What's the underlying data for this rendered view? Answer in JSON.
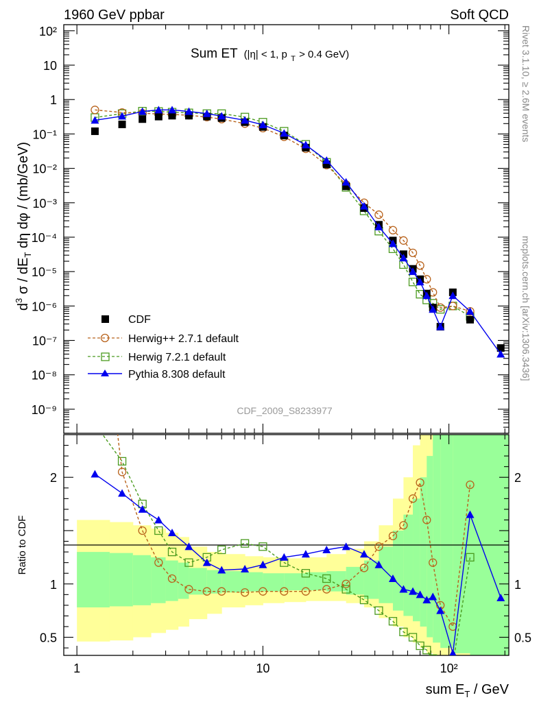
{
  "header": {
    "energy": "1960 GeV ppbar",
    "process": "Soft QCD"
  },
  "side_labels": {
    "rivet": "Rivet 3.1.10, ≥ 2.6M events",
    "source": "mcplots.cern.ch [arXiv:1306.3436]"
  },
  "main_plot": {
    "title": "Sum ET",
    "title_sub": "(|η| < 1, p",
    "title_sub_T": "T",
    "title_sub_end": " > 0.4 GeV)",
    "analysis_id": "CDF_2009_S8233977"
  },
  "axes": {
    "ylabel_main": "d³σ / dE_T dη dφ / (mb/GeV)",
    "ylabel_ratio": "Ratio to CDF",
    "xlabel": "sum E_T / GeV",
    "x_ticks": [
      "1",
      "10",
      "10²"
    ],
    "y_ticks_main": [
      "10²",
      "10",
      "1",
      "10⁻¹",
      "10⁻²",
      "10⁻³",
      "10⁻⁴",
      "10⁻⁵",
      "10⁻⁶",
      "10⁻⁷",
      "10⁻⁸",
      "10⁻⁹"
    ],
    "y_ticks_ratio": [
      "2",
      "1",
      "0.5"
    ]
  },
  "legend": {
    "placement": "bottom-left",
    "entries": [
      {
        "label": "CDF",
        "color": "#000000"
      },
      {
        "label": "Herwig++ 2.7.1 default",
        "color": "#b8621b"
      },
      {
        "label": "Herwig 7.2.1 default",
        "color": "#4a9a1e"
      },
      {
        "label": "Pythia 8.308 default",
        "color": "#0000ee"
      }
    ]
  },
  "chart_data": {
    "type": "scatter",
    "xscale": "log",
    "yscale_main": "log",
    "xlim": [
      0.85,
      210
    ],
    "ylim_main": [
      2e-10,
      150
    ],
    "ylim_ratio": [
      0.33,
      2.4
    ],
    "series": [
      {
        "name": "CDF",
        "x": [
          1.25,
          1.75,
          2.25,
          2.75,
          3.25,
          4,
          5,
          6,
          8,
          10,
          13,
          17,
          22,
          28,
          35,
          42,
          50,
          57,
          64,
          70,
          76,
          82,
          90,
          105,
          130,
          190
        ],
        "y": [
          0.12,
          0.19,
          0.27,
          0.32,
          0.34,
          0.34,
          0.32,
          0.29,
          0.22,
          0.16,
          0.09,
          0.04,
          0.013,
          0.003,
          0.0007,
          0.00023,
          8e-05,
          3.2e-05,
          1.2e-05,
          6e-06,
          2.3e-06,
          9e-07,
          2.5e-07,
          2.5e-06,
          4e-07,
          6e-08
        ]
      },
      {
        "name": "Herwig++ 2.7.1 default",
        "x": [
          1.25,
          1.75,
          2.25,
          2.75,
          3.25,
          4,
          5,
          6,
          8,
          10,
          13,
          17,
          22,
          28,
          35,
          42,
          50,
          57,
          64,
          70,
          76,
          82,
          90,
          105,
          130
        ],
        "y": [
          0.5,
          0.42,
          0.4,
          0.38,
          0.37,
          0.35,
          0.31,
          0.27,
          0.2,
          0.148,
          0.083,
          0.037,
          0.0125,
          0.0034,
          0.001,
          0.00045,
          0.00016,
          8e-05,
          3.5e-05,
          1.5e-05,
          6e-06,
          2.5e-06,
          9e-07,
          1e-06,
          7e-07
        ]
      },
      {
        "name": "Herwig 7.2.1 default",
        "x": [
          1.25,
          1.75,
          2.25,
          2.75,
          3.25,
          4,
          5,
          6,
          8,
          10,
          13,
          17,
          22,
          28,
          35,
          42,
          50,
          57,
          64,
          70,
          76,
          82,
          90,
          105,
          130
        ],
        "y": [
          0.3,
          0.39,
          0.46,
          0.45,
          0.43,
          0.41,
          0.39,
          0.39,
          0.31,
          0.22,
          0.12,
          0.05,
          0.015,
          0.0028,
          0.00058,
          0.00015,
          4.6e-05,
          1.6e-05,
          5e-06,
          2.2e-06,
          1.5e-06,
          1.2e-06,
          8e-07,
          1e-06,
          5e-07
        ]
      },
      {
        "name": "Pythia 8.308 default",
        "x": [
          1.25,
          1.75,
          2.25,
          2.75,
          3.25,
          4,
          5,
          6,
          8,
          10,
          13,
          17,
          22,
          28,
          35,
          42,
          50,
          57,
          64,
          70,
          76,
          82,
          90,
          105,
          130,
          190
        ],
        "y": [
          0.25,
          0.33,
          0.45,
          0.5,
          0.5,
          0.45,
          0.39,
          0.33,
          0.25,
          0.185,
          0.105,
          0.048,
          0.017,
          0.004,
          0.0008,
          0.0002,
          6.5e-05,
          2.5e-05,
          1e-05,
          5e-06,
          2e-06,
          8e-07,
          2.5e-07,
          2e-06,
          7e-07,
          4e-08
        ]
      }
    ],
    "ratio_series": [
      {
        "name": "Herwig++ 2.7.1 default",
        "x": [
          1.25,
          1.75,
          2.25,
          2.75,
          3.25,
          4,
          5,
          6,
          8,
          10,
          13,
          17,
          22,
          28,
          35,
          42,
          50,
          57,
          64,
          70,
          76,
          82,
          90,
          105,
          130
        ],
        "y": [
          4.2,
          2.05,
          1.5,
          1.2,
          1.05,
          0.95,
          0.93,
          0.93,
          0.92,
          0.93,
          0.93,
          0.93,
          0.95,
          1.0,
          1.15,
          1.35,
          1.45,
          1.55,
          1.8,
          1.95,
          1.6,
          1.2,
          0.8,
          0.6,
          1.93
        ]
      },
      {
        "name": "Herwig 7.2.1 default",
        "x": [
          1.25,
          1.75,
          2.25,
          2.75,
          3.25,
          4,
          5,
          6,
          8,
          10,
          13,
          17,
          22,
          28,
          35,
          42,
          50,
          57,
          64,
          70,
          76,
          82,
          90,
          105,
          130
        ],
        "y": [
          2.5,
          2.15,
          1.75,
          1.5,
          1.3,
          1.2,
          1.25,
          1.32,
          1.38,
          1.35,
          1.2,
          1.1,
          1.05,
          0.95,
          0.85,
          0.75,
          0.65,
          0.55,
          0.5,
          0.42,
          0.38,
          0.3,
          0.25,
          0.25,
          1.25
        ]
      },
      {
        "name": "Pythia 8.308 default",
        "x": [
          1.25,
          1.75,
          2.25,
          2.75,
          3.25,
          4,
          5,
          6,
          8,
          10,
          13,
          17,
          22,
          28,
          35,
          42,
          50,
          57,
          64,
          70,
          76,
          82,
          90,
          105,
          130,
          190
        ],
        "y": [
          2.03,
          1.85,
          1.7,
          1.6,
          1.48,
          1.35,
          1.2,
          1.13,
          1.14,
          1.18,
          1.25,
          1.28,
          1.32,
          1.35,
          1.28,
          1.18,
          1.05,
          0.95,
          0.93,
          0.9,
          0.85,
          0.88,
          0.75,
          0.35,
          1.65,
          0.87
        ]
      }
    ],
    "bands": {
      "x_edges": [
        1,
        1.5,
        2,
        2.5,
        3,
        3.5,
        4,
        5,
        6,
        8,
        10,
        13,
        17,
        22,
        28,
        35,
        42,
        50,
        57,
        64,
        70,
        76,
        82,
        90,
        105,
        130,
        210
      ],
      "yellow_lo": [
        0.46,
        0.47,
        0.5,
        0.54,
        0.57,
        0.6,
        0.67,
        0.72,
        0.78,
        0.8,
        0.82,
        0.83,
        0.84,
        0.84,
        0.82,
        0.78,
        0.68,
        0.6,
        0.5,
        0.45,
        0.4,
        0.35,
        0.33,
        0.33,
        0.33,
        0.33
      ],
      "yellow_hi": [
        1.6,
        1.58,
        1.55,
        1.52,
        1.48,
        1.44,
        1.35,
        1.3,
        1.28,
        1.26,
        1.25,
        1.24,
        1.25,
        1.28,
        1.33,
        1.4,
        1.55,
        1.8,
        2.0,
        2.3,
        2.4,
        2.4,
        2.4,
        2.4,
        2.4,
        2.4
      ],
      "green_lo": [
        0.78,
        0.79,
        0.8,
        0.82,
        0.84,
        0.86,
        0.9,
        0.91,
        0.92,
        0.93,
        0.93,
        0.94,
        0.94,
        0.93,
        0.9,
        0.86,
        0.82,
        0.75,
        0.7,
        0.65,
        0.6,
        0.5,
        0.45,
        0.4,
        0.35,
        0.33
      ],
      "green_hi": [
        1.3,
        1.29,
        1.27,
        1.25,
        1.22,
        1.2,
        1.15,
        1.13,
        1.12,
        1.11,
        1.1,
        1.1,
        1.11,
        1.12,
        1.16,
        1.22,
        1.35,
        1.5,
        1.65,
        1.8,
        2.0,
        2.2,
        2.4,
        2.4,
        2.4,
        2.4
      ]
    },
    "grid": false
  }
}
